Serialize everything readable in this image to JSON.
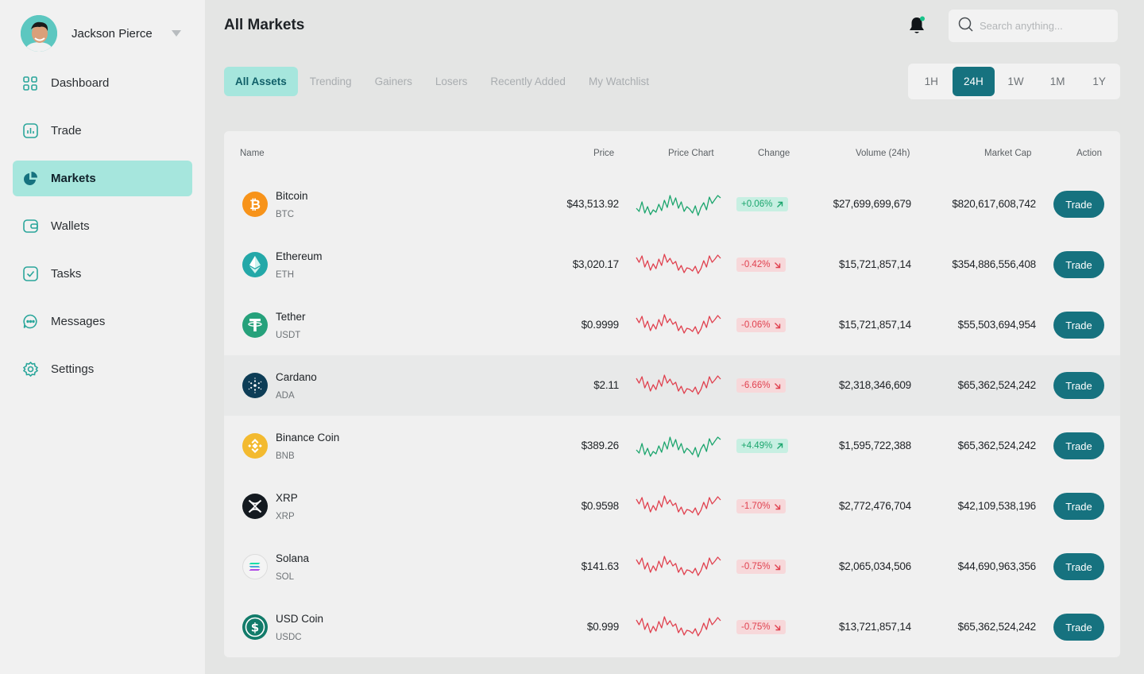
{
  "user": {
    "name": "Jackson Pierce"
  },
  "sidebar": {
    "items": [
      {
        "label": "Dashboard",
        "icon": "grid-icon"
      },
      {
        "label": "Trade",
        "icon": "chart-bars-icon"
      },
      {
        "label": "Markets",
        "icon": "pie-chart-icon",
        "active": true
      },
      {
        "label": "Wallets",
        "icon": "wallet-icon"
      },
      {
        "label": "Tasks",
        "icon": "checkbox-icon"
      },
      {
        "label": "Messages",
        "icon": "chat-icon"
      },
      {
        "label": "Settings",
        "icon": "gear-icon"
      }
    ]
  },
  "header": {
    "title": "All Markets",
    "search_placeholder": "Search anything..."
  },
  "tabs": [
    "All Assets",
    "Trending",
    "Gainers",
    "Losers",
    "Recently Added",
    "My Watchlist"
  ],
  "timeframes": [
    "1H",
    "24H",
    "1W",
    "1M",
    "1Y"
  ],
  "table": {
    "columns": {
      "name": "Name",
      "price": "Price",
      "chart": "Price Chart",
      "change": "Change",
      "volume": "Volume (24h)",
      "cap": "Market Cap",
      "action": "Action"
    },
    "trade_label": "Trade",
    "rows": [
      {
        "name": "Bitcoin",
        "symbol": "BTC",
        "price": "$43,513.92",
        "change": "+0.06%",
        "dir": "up",
        "volume": "$27,699,699,679",
        "cap": "$820,617,608,742",
        "icon_color": "#f7931a"
      },
      {
        "name": "Ethereum",
        "symbol": "ETH",
        "price": "$3,020.17",
        "change": "-0.42%",
        "dir": "down",
        "volume": "$15,721,857,14",
        "cap": "$354,886,556,408",
        "icon_color": "#23a8a8"
      },
      {
        "name": "Tether",
        "symbol": "USDT",
        "price": "$0.9999",
        "change": "-0.06%",
        "dir": "down",
        "volume": "$15,721,857,14",
        "cap": "$55,503,694,954",
        "icon_color": "#26a17b"
      },
      {
        "name": "Cardano",
        "symbol": "ADA",
        "price": "$2.11",
        "change": "-6.66%",
        "dir": "down",
        "volume": "$2,318,346,609",
        "cap": "$65,362,524,242",
        "icon_color": "#0d3d56"
      },
      {
        "name": "Binance Coin",
        "symbol": "BNB",
        "price": "$389.26",
        "change": "+4.49%",
        "dir": "up",
        "volume": "$1,595,722,388",
        "cap": "$65,362,524,242",
        "icon_color": "#f3ba2f"
      },
      {
        "name": "XRP",
        "symbol": "XRP",
        "price": "$0.9598",
        "change": "-1.70%",
        "dir": "down",
        "volume": "$2,772,476,704",
        "cap": "$42,109,538,196",
        "icon_color": "#141a20"
      },
      {
        "name": "Solana",
        "symbol": "SOL",
        "price": "$141.63",
        "change": "-0.75%",
        "dir": "down",
        "volume": "$2,065,034,506",
        "cap": "$44,690,963,356",
        "icon_color": "#f4f4f4"
      },
      {
        "name": "USD Coin",
        "symbol": "USDC",
        "price": "$0.999",
        "change": "-0.75%",
        "dir": "down",
        "volume": "$13,721,857,14",
        "cap": "$65,362,524,242",
        "icon_color": "#127b6a"
      }
    ]
  },
  "colors": {
    "accent": "#16727f",
    "accent_light": "#a6e6dd",
    "up": "#1ba56d",
    "down": "#e0414f"
  }
}
